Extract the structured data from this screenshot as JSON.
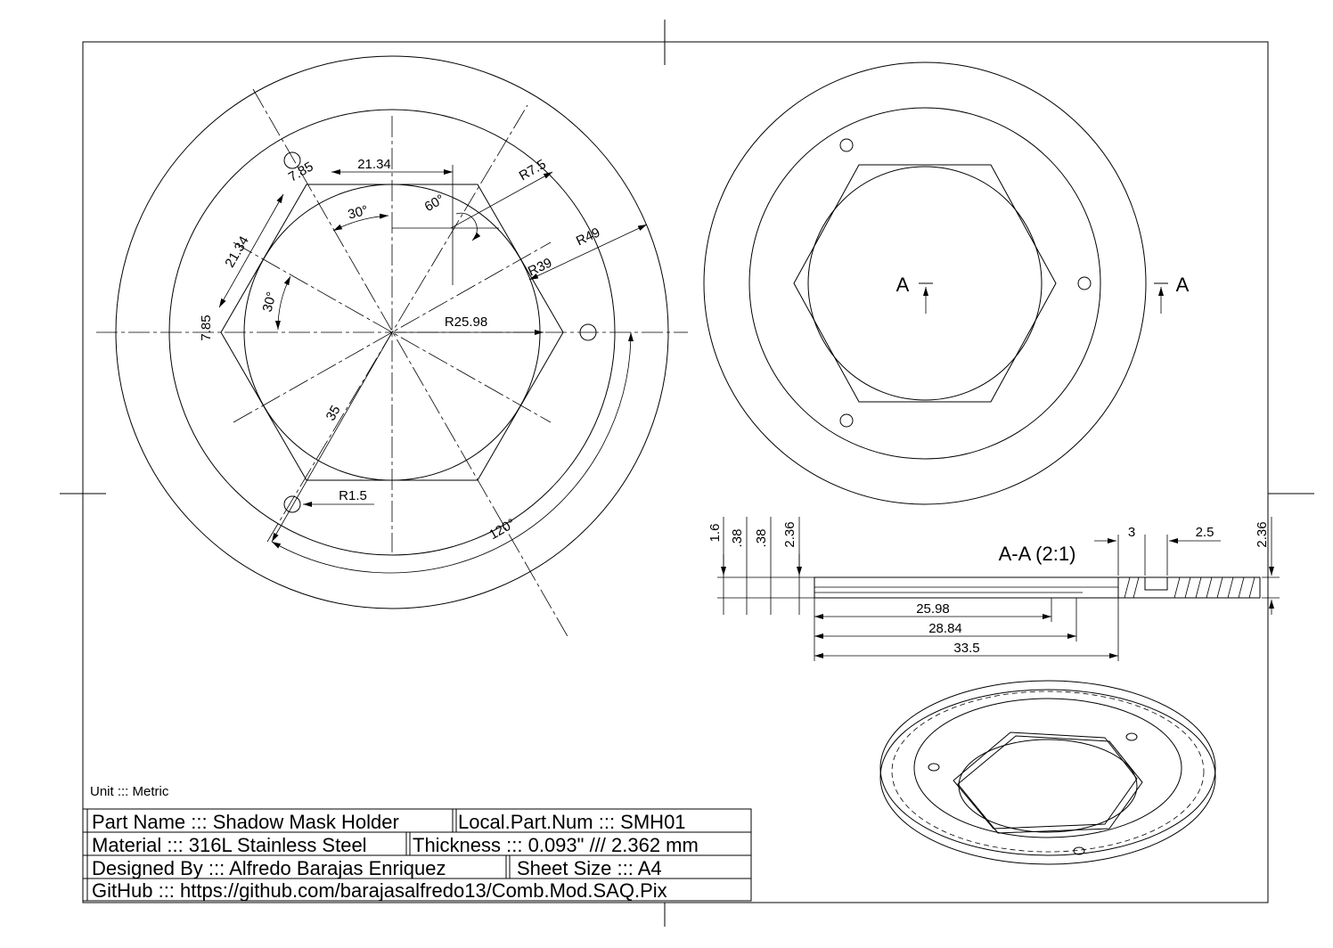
{
  "unit_label": "Unit ::: Metric",
  "title_block": {
    "part_name": "Part Name ::: Shadow Mask Holder",
    "local_part_num": "Local.Part.Num ::: SMH01",
    "material": "Material ::: 316L Stainless Steel",
    "thickness": "Thickness ::: 0.093\" /// 2.362 mm",
    "designed_by": "Designed By :::  Alfredo Barajas Enriquez",
    "sheet_size": "Sheet Size ::: A4",
    "github": "GitHub ::: https://github.com/barajasalfredo13/Comb.Mod.SAQ.Pix"
  },
  "front_view": {
    "dims": {
      "flat_top": "21.34",
      "flat_side": "21.34",
      "corner_top": "7.85",
      "corner_left": "7.85",
      "r_corner": "R7.5",
      "angle_60": "60°",
      "angle_30_top": "30°",
      "angle_30_left": "30°",
      "r49": "R49",
      "r39": "R39",
      "r25": "R25.98",
      "d35": "35",
      "r1_5": "R1.5",
      "angle_120": "120°"
    }
  },
  "right_view": {
    "section_label_left": "A",
    "section_label_right": "A"
  },
  "section_view": {
    "title": "A-A (2:1)",
    "dims": {
      "v1": "1.6",
      "v2": ".38",
      "v3": ".38",
      "v4": "2.36",
      "w3": "3",
      "w25": "2.5",
      "v_right": "2.36",
      "l1": "25.98",
      "l2": "28.84",
      "l3": "33.5"
    }
  }
}
